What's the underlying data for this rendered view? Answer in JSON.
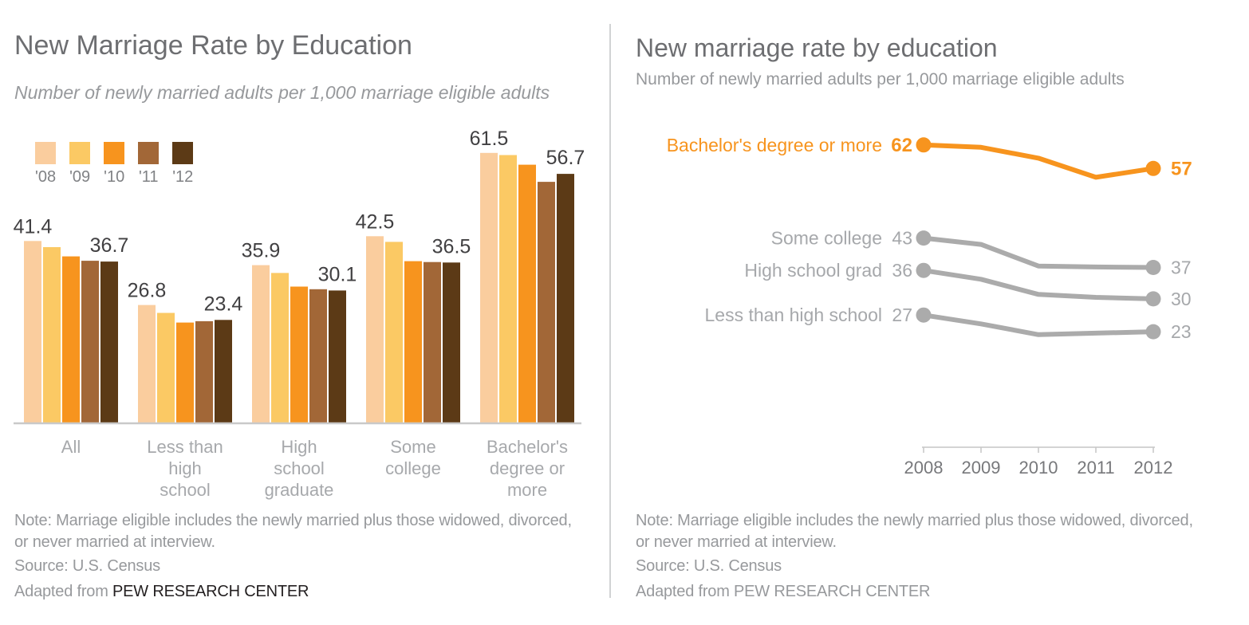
{
  "divider": true,
  "chart_data": [
    {
      "type": "bar",
      "title": "New Marriage Rate by Education",
      "subtitle": "Number of newly married adults per 1,000 marriage eligible adults",
      "legend_years": [
        "'08",
        "'09",
        "'10",
        "'11",
        "'12"
      ],
      "year_colors": [
        "#FACD9E",
        "#FBC964",
        "#F7941E",
        "#A26737",
        "#5C3A16"
      ],
      "categories": [
        "All",
        "Less than high school",
        "High school graduate",
        "Some college",
        "Bachelor's degree or more"
      ],
      "category_label_lines": [
        [
          "All"
        ],
        [
          "Less than",
          "high",
          "school"
        ],
        [
          "High",
          "school",
          "graduate"
        ],
        [
          "Some",
          "college"
        ],
        [
          "Bachelor's",
          "degree or",
          "more"
        ]
      ],
      "series_by_category": [
        [
          41.4,
          40.0,
          37.9,
          36.9,
          36.7
        ],
        [
          26.8,
          25.0,
          22.8,
          23.1,
          23.4
        ],
        [
          35.9,
          34.1,
          31.0,
          30.4,
          30.1
        ],
        [
          42.5,
          41.2,
          36.8,
          36.6,
          36.5
        ],
        [
          61.5,
          61.0,
          58.8,
          54.9,
          56.7
        ]
      ],
      "labeled_values": [
        [
          "41.4",
          "36.7"
        ],
        [
          "26.8",
          "23.4"
        ],
        [
          "35.9",
          "30.1"
        ],
        [
          "42.5",
          "36.5"
        ],
        [
          "61.5",
          "56.7"
        ]
      ],
      "ylim": [
        0,
        65
      ],
      "grid": false,
      "note_line1": "Note: Marriage eligible includes the newly married plus those widowed, divorced,",
      "note_line2": "or never married at interview.",
      "source": "Source: U.S. Census",
      "adapted_prefix": "Adapted from ",
      "adapted_org": "PEW RESEARCH CENTER"
    },
    {
      "type": "line",
      "title": "New marriage rate by education",
      "subtitle": "Number of newly married adults per 1,000 marriage eligible adults",
      "x": [
        2008,
        2009,
        2010,
        2011,
        2012
      ],
      "x_labels": [
        "2008",
        "2009",
        "2010",
        "2011",
        "2012"
      ],
      "series": [
        {
          "name": "Bachelor's degree or more",
          "values": [
            61.5,
            61.0,
            58.8,
            54.9,
            56.7
          ],
          "start_label": "62",
          "end_label": "57",
          "color": "#F7941E",
          "emphasis": true
        },
        {
          "name": "Some college",
          "values": [
            42.5,
            41.2,
            36.8,
            36.6,
            36.5
          ],
          "start_label": "43",
          "end_label": "37",
          "color": "#ABABAB",
          "emphasis": false
        },
        {
          "name": "High school grad",
          "values": [
            35.9,
            34.1,
            31.0,
            30.4,
            30.1
          ],
          "start_label": "36",
          "end_label": "30",
          "color": "#ABABAB",
          "emphasis": false
        },
        {
          "name": "Less than high school",
          "values": [
            26.8,
            25.0,
            22.8,
            23.1,
            23.4
          ],
          "start_label": "27",
          "end_label": "23",
          "color": "#ABABAB",
          "emphasis": false
        }
      ],
      "label_text_color": "#A6A8AB",
      "emphasis_color": "#F7941E",
      "ylim": [
        0,
        65
      ],
      "grid": false,
      "legend_position": "left-of-lines",
      "note_line1": "Note: Marriage eligible includes the newly married plus those widowed, divorced,",
      "note_line2": "or never married at interview.",
      "source": "Source: U.S. Census",
      "adapted": "Adapted from PEW RESEARCH CENTER"
    }
  ]
}
